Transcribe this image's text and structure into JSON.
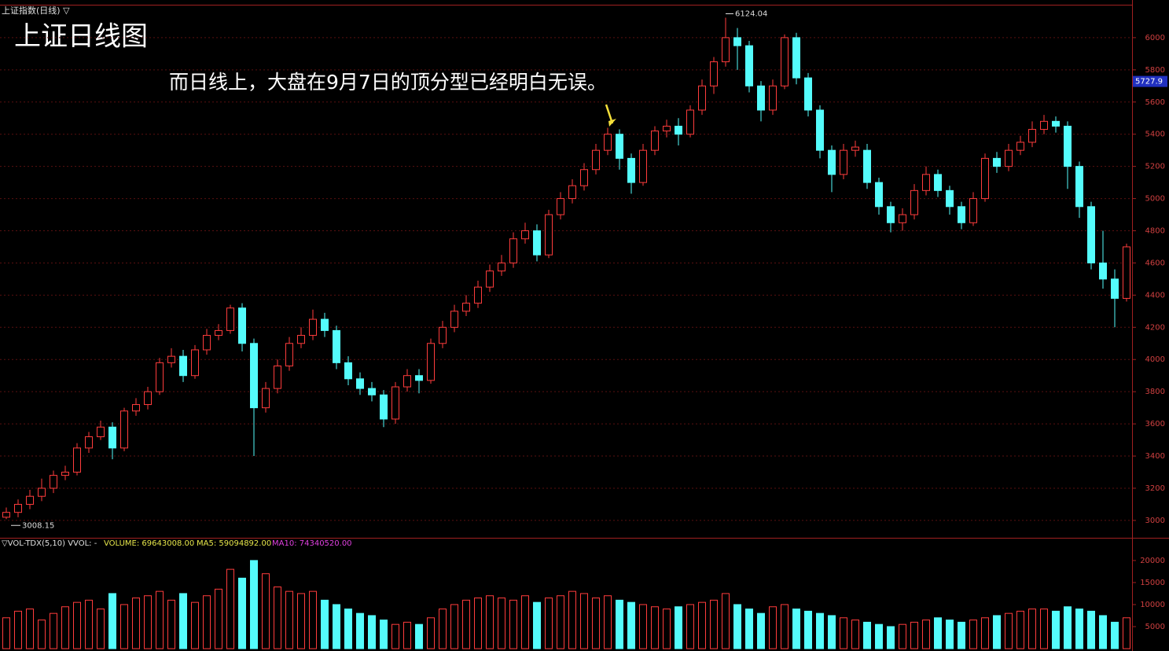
{
  "header": {
    "symbol": "上证指数(日线) ▽",
    "title": "上证日线图",
    "annotation": "而日线上，大盘在9月7日的顶分型已经明白无误。"
  },
  "chart_data": [
    {
      "type": "candlestick",
      "up_color": "#ff3c3c",
      "down_color": "#54fcfc",
      "ylim": [
        2897,
        6234
      ],
      "yticks": [
        3000,
        3200,
        3400,
        3600,
        3800,
        4000,
        4200,
        4400,
        4600,
        4800,
        5000,
        5200,
        5400,
        5600,
        5800,
        6000
      ],
      "grid": true,
      "current_price": 5727.9,
      "open": [
        3020,
        3050,
        3100,
        3150,
        3200,
        3280,
        3300,
        3450,
        3520,
        3580,
        3450,
        3680,
        3720,
        3800,
        3980,
        4020,
        3900,
        4060,
        4150,
        4180,
        4320,
        4100,
        3700,
        3820,
        3960,
        4100,
        4150,
        4250,
        4180,
        3980,
        3880,
        3820,
        3780,
        3630,
        3830,
        3900,
        3870,
        4100,
        4200,
        4300,
        4350,
        4450,
        4550,
        4600,
        4750,
        4800,
        4650,
        4900,
        5000,
        5080,
        5180,
        5300,
        5400,
        5250,
        5100,
        5300,
        5420,
        5450,
        5400,
        5550,
        5700,
        5850,
        6000,
        5950,
        5700,
        5550,
        5700,
        6000,
        5750,
        5550,
        5300,
        5150,
        5300,
        5300,
        5100,
        4950,
        4850,
        4900,
        5050,
        5150,
        5050,
        4950,
        4850,
        5000,
        5250,
        5200,
        5300,
        5350,
        5430,
        5480,
        5450,
        5200,
        4950,
        4600,
        4500,
        4380
      ],
      "high": [
        3080,
        3130,
        3190,
        3260,
        3310,
        3340,
        3480,
        3550,
        3620,
        3610,
        3700,
        3760,
        3830,
        4010,
        4070,
        4060,
        4090,
        4190,
        4220,
        4340,
        4350,
        4130,
        3860,
        4000,
        4140,
        4200,
        4310,
        4290,
        4210,
        4020,
        3920,
        3860,
        3810,
        3860,
        3940,
        3940,
        4130,
        4240,
        4340,
        4400,
        4490,
        4590,
        4650,
        4790,
        4850,
        4840,
        4930,
        5040,
        5120,
        5220,
        5340,
        5440,
        5430,
        5280,
        5340,
        5450,
        5490,
        5500,
        5580,
        5740,
        5880,
        6124.04,
        6060,
        5980,
        5730,
        5740,
        6020,
        6030,
        5780,
        5580,
        5330,
        5340,
        5360,
        5340,
        5130,
        4980,
        4940,
        5090,
        5200,
        5180,
        5080,
        4980,
        5040,
        5280,
        5290,
        5340,
        5390,
        5480,
        5520,
        5510,
        5480,
        5230,
        4980,
        4800,
        4560,
        4720
      ],
      "low": [
        3008.15,
        3020,
        3070,
        3120,
        3170,
        3250,
        3280,
        3420,
        3500,
        3380,
        3430,
        3650,
        3690,
        3780,
        3950,
        3860,
        3880,
        4030,
        4120,
        4160,
        4050,
        3400,
        3670,
        3790,
        3930,
        4070,
        4120,
        4140,
        3940,
        3840,
        3780,
        3740,
        3580,
        3600,
        3800,
        3790,
        3850,
        4070,
        4170,
        4270,
        4320,
        4420,
        4520,
        4570,
        4720,
        4610,
        4630,
        4870,
        4970,
        5050,
        5150,
        5270,
        5180,
        5030,
        5080,
        5270,
        5380,
        5330,
        5380,
        5520,
        5650,
        5820,
        5800,
        5660,
        5480,
        5520,
        5680,
        5710,
        5510,
        5250,
        5040,
        5120,
        5260,
        5060,
        4900,
        4790,
        4800,
        4870,
        5020,
        5010,
        4900,
        4810,
        4830,
        4980,
        5160,
        5170,
        5270,
        5320,
        5400,
        5410,
        5060,
        4880,
        4560,
        4440,
        4200,
        4360
      ],
      "close": [
        3050,
        3100,
        3150,
        3200,
        3280,
        3300,
        3450,
        3520,
        3580,
        3450,
        3680,
        3720,
        3800,
        3980,
        4020,
        3900,
        4060,
        4150,
        4180,
        4320,
        4100,
        3700,
        3820,
        3960,
        4100,
        4150,
        4250,
        4180,
        3980,
        3880,
        3820,
        3780,
        3630,
        3830,
        3900,
        3870,
        4100,
        4200,
        4300,
        4350,
        4450,
        4550,
        4600,
        4750,
        4800,
        4650,
        4900,
        5000,
        5080,
        5180,
        5300,
        5400,
        5250,
        5100,
        5300,
        5420,
        5450,
        5400,
        5550,
        5700,
        5850,
        6000,
        5950,
        5700,
        5550,
        5700,
        6000,
        5750,
        5550,
        5300,
        5150,
        5300,
        5320,
        5100,
        4950,
        4850,
        4900,
        5050,
        5150,
        5050,
        4950,
        4850,
        5000,
        5250,
        5200,
        5300,
        5350,
        5430,
        5480,
        5450,
        5200,
        4950,
        4600,
        4500,
        4380,
        4700
      ]
    },
    {
      "type": "volume",
      "header": {
        "name": "▽VOL-TDX(5,10) VVOL: -",
        "volume": "VOLUME: 69643008.00",
        "ma5": "MA5: 59094892.00",
        "ma10": "MA10: 74340520.00"
      },
      "ylim": [
        0,
        22300
      ],
      "yticks": [
        5000,
        10000,
        15000,
        20000
      ],
      "values": [
        7000,
        8500,
        9000,
        6500,
        8000,
        9500,
        10500,
        11000,
        9000,
        12500,
        10000,
        11500,
        12000,
        13000,
        11000,
        12500,
        10500,
        12000,
        13500,
        18000,
        16000,
        20000,
        17000,
        14000,
        13000,
        12500,
        13000,
        11000,
        10000,
        9000,
        8000,
        7500,
        6500,
        5500,
        6000,
        5500,
        7000,
        9000,
        10000,
        11000,
        11500,
        12000,
        11500,
        11000,
        12000,
        10500,
        11500,
        12000,
        13000,
        12500,
        11500,
        12000,
        11000,
        10500,
        10000,
        9500,
        9000,
        9500,
        10000,
        10500,
        11000,
        12500,
        10000,
        9000,
        8000,
        9500,
        10000,
        9000,
        8500,
        8000,
        7500,
        7000,
        6500,
        6000,
        5500,
        5000,
        5500,
        6000,
        6500,
        7000,
        6500,
        6000,
        6500,
        7000,
        7500,
        8000,
        8500,
        9000,
        9000,
        8500,
        9500,
        9000,
        8500,
        7500,
        6000,
        7000
      ]
    }
  ]
}
